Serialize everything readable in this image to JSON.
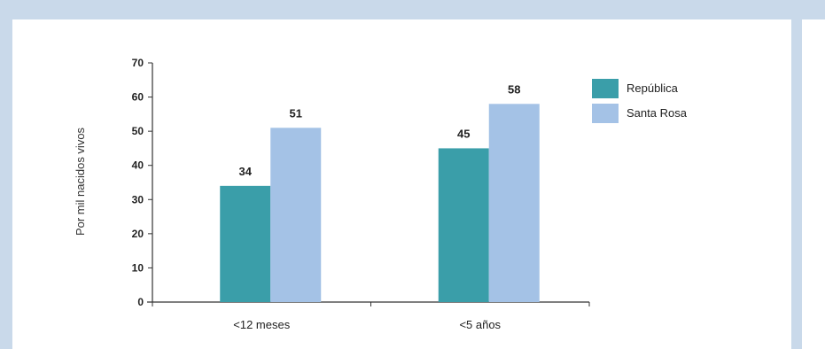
{
  "colors": {
    "background": "#c9d9ea",
    "panel": "#ffffff"
  },
  "chart_data": {
    "type": "bar",
    "ylabel": "Por mil nacidos vivos",
    "ylim": [
      0,
      70
    ],
    "yticks": [
      0,
      10,
      20,
      30,
      40,
      50,
      60,
      70
    ],
    "categories": [
      "<12 meses",
      "<5 años"
    ],
    "series": [
      {
        "name": "República",
        "values": [
          34,
          45
        ],
        "color": "#3a9ea9"
      },
      {
        "name": "Santa Rosa",
        "values": [
          51,
          58
        ],
        "color": "#a4c2e6"
      }
    ],
    "legend_position": "top-right",
    "grid": false
  }
}
